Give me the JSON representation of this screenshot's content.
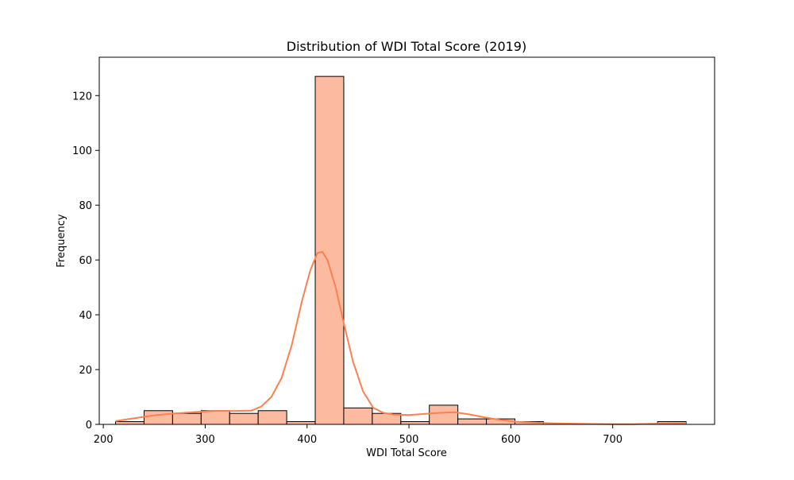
{
  "chart_data": {
    "type": "bar",
    "title": "Distribution of WDI Total Score (2019)",
    "xlabel": "WDI Total Score",
    "ylabel": "Frequency",
    "xlim": [
      196,
      800
    ],
    "ylim": [
      0,
      134
    ],
    "xticks": [
      200,
      300,
      400,
      500,
      600,
      700
    ],
    "yticks": [
      0,
      20,
      40,
      60,
      80,
      100,
      120
    ],
    "bin_edges": [
      212,
      240,
      268,
      296,
      324,
      352,
      380,
      408,
      436,
      464,
      492,
      520,
      548,
      576,
      604,
      632,
      660,
      688,
      716,
      744,
      772
    ],
    "counts": [
      1,
      5,
      4,
      5,
      4,
      5,
      1,
      127,
      6,
      4,
      1,
      7,
      2,
      2,
      1,
      0,
      0,
      0,
      0,
      1
    ],
    "kde": {
      "x": [
        212,
        230,
        250,
        270,
        290,
        310,
        330,
        345,
        355,
        365,
        375,
        385,
        395,
        403,
        410,
        415,
        420,
        428,
        436,
        445,
        455,
        465,
        475,
        485,
        500,
        515,
        530,
        545,
        560,
        575,
        590,
        605,
        620,
        640,
        660,
        680,
        700,
        720,
        740,
        760,
        772
      ],
      "y": [
        1.2,
        2.2,
        3.3,
        4.0,
        4.5,
        4.9,
        4.9,
        5.0,
        6.5,
        10.0,
        17.0,
        29.0,
        45.0,
        56.0,
        62.5,
        63.0,
        60.0,
        50.0,
        37.0,
        23.0,
        12.0,
        6.0,
        4.2,
        3.6,
        3.4,
        3.8,
        4.2,
        4.4,
        3.6,
        2.5,
        1.6,
        1.0,
        0.7,
        0.4,
        0.25,
        0.15,
        0.1,
        0.1,
        0.2,
        0.35,
        0.4
      ]
    },
    "colors": {
      "bar_fill": "#fcbba1",
      "bar_edge": "#000000",
      "kde_line": "#fc8050"
    },
    "grid": false,
    "legend": "none"
  }
}
